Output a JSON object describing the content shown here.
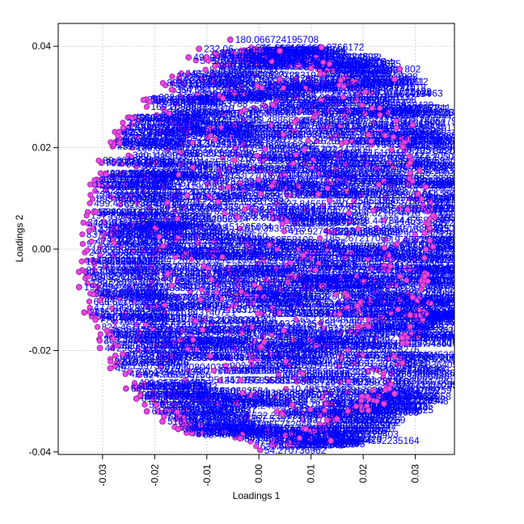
{
  "chart_data": {
    "type": "scatter",
    "title": "",
    "xlabel": "Loadings 1",
    "ylabel": "Loadings 2",
    "xlim": [
      -0.0385,
      0.0375
    ],
    "ylim": [
      -0.0405,
      0.0445
    ],
    "x_ticks": [
      -0.03,
      -0.02,
      -0.01,
      0.0,
      0.01,
      0.02,
      0.03
    ],
    "x_tick_labels": [
      "-0.03",
      "-0.02",
      "-0.01",
      "0.00",
      "0.01",
      "0.02",
      "0.03"
    ],
    "y_ticks": [
      -0.04,
      -0.02,
      0.0,
      0.02,
      0.04
    ],
    "y_tick_labels": [
      "-0.04",
      "-0.02",
      "0.00",
      "0.02",
      "0.04"
    ],
    "grid": true,
    "point_fill": "#ee44ee",
    "point_stroke": "#9a2a9a",
    "label_color": "#0000ff",
    "labeled_points": [
      {
        "x": -0.0055,
        "y": 0.0413,
        "label": "180.066724195708"
      },
      {
        "x": 0.0138,
        "y": -0.0378,
        "label": "395.244192235164"
      },
      {
        "x": 0.0285,
        "y": 0.0078,
        "label": "5.76"
      },
      {
        "x": 0.0295,
        "y": -0.0095,
        "label": "31"
      },
      {
        "x": 0.029,
        "y": -0.013,
        "label": "19256"
      },
      {
        "x": 0.0275,
        "y": -0.0175,
        "label": "3173"
      },
      {
        "x": 0.0275,
        "y": -0.0225,
        "label": "5417"
      },
      {
        "x": 0.026,
        "y": -0.0285,
        "label": "39"
      },
      {
        "x": 0.024,
        "y": -0.0305,
        "label": "39026"
      },
      {
        "x": 0.021,
        "y": -0.0318,
        "label": "328"
      },
      {
        "x": 0.015,
        "y": -0.0335,
        "label": "124"
      },
      {
        "x": 0.009,
        "y": -0.0355,
        "label": "651"
      },
      {
        "x": -0.0155,
        "y": -0.0355,
        "label": "388.157"
      },
      {
        "x": -0.0185,
        "y": -0.034,
        "label": "518.39"
      },
      {
        "x": -0.0215,
        "y": -0.032,
        "label": "616"
      },
      {
        "x": -0.0235,
        "y": -0.0295,
        "label": "611"
      },
      {
        "x": -0.0255,
        "y": -0.0275,
        "label": "66"
      },
      {
        "x": -0.0285,
        "y": -0.0235,
        "label": "49"
      },
      {
        "x": -0.0305,
        "y": -0.0195,
        "label": "44"
      },
      {
        "x": -0.0335,
        "y": -0.0125,
        "label": "283"
      },
      {
        "x": -0.0345,
        "y": -0.0075,
        "label": "191"
      },
      {
        "x": -0.0345,
        "y": -0.0045,
        "label": "30"
      },
      {
        "x": 0.0295,
        "y": 0.0245,
        "label": "171"
      },
      {
        "x": 0.029,
        "y": 0.017,
        "label": "545"
      },
      {
        "x": 0.027,
        "y": 0.0355,
        "label": "802"
      },
      {
        "x": 0.026,
        "y": 0.0335,
        "label": "203"
      },
      {
        "x": 0.012,
        "y": 0.0398,
        "label": "0766172"
      },
      {
        "x": 0.004,
        "y": 0.0391,
        "label": "3"
      },
      {
        "x": -0.0115,
        "y": 0.0395,
        "label": "232.06"
      },
      {
        "x": -0.0135,
        "y": 0.0378,
        "label": "49"
      },
      {
        "x": 0.025,
        "y": -0.0275,
        "label": "45022"
      }
    ]
  }
}
